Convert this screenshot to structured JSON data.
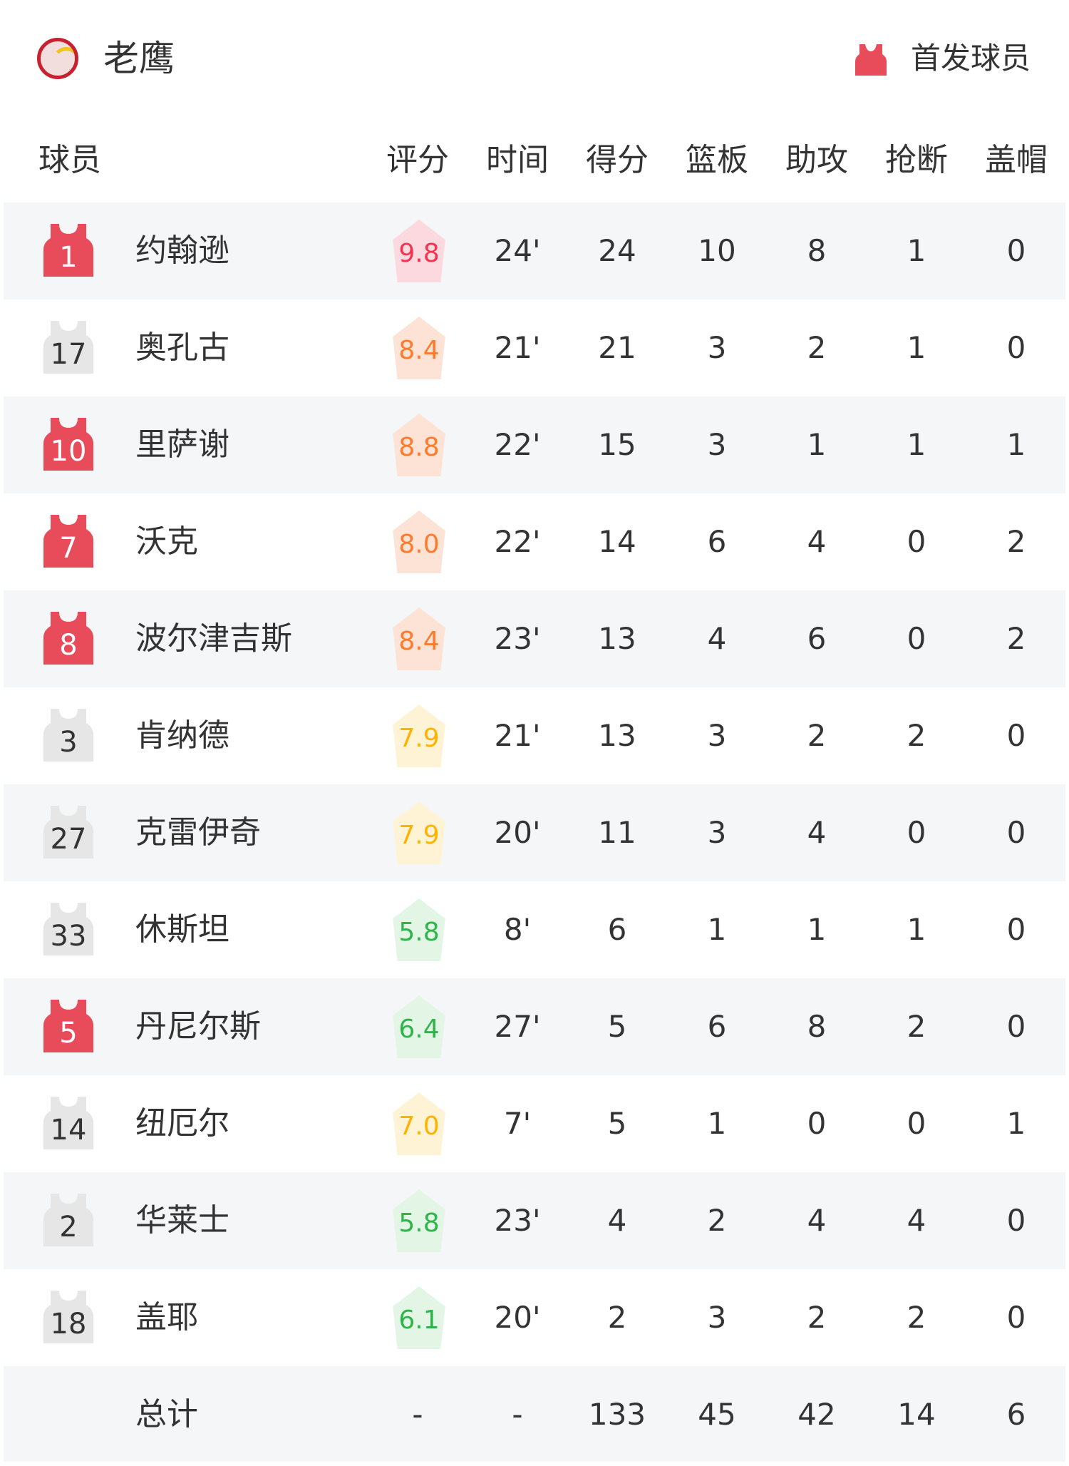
{
  "header": {
    "team_name": "老鹰",
    "team_logo_icon": "hawks-logo",
    "legend_icon": "red-jersey-icon",
    "legend_label": "首发球员"
  },
  "columns": {
    "player": "球员",
    "rating": "评分",
    "time": "时间",
    "points": "得分",
    "rebounds": "篮板",
    "assists": "助攻",
    "steals": "抢断",
    "blocks": "盖帽"
  },
  "colors": {
    "starter_jersey": "#e84c5b",
    "bench_jersey": "#e6e6e6",
    "rating_red": "#f5334f",
    "rating_orange": "#ff7a29",
    "rating_yellow": "#ffb300",
    "rating_green": "#2fb44a"
  },
  "players": [
    {
      "number": "1",
      "name": "约翰逊",
      "starter": true,
      "rating": "9.8",
      "time": "24'",
      "points": "24",
      "rebounds": "10",
      "assists": "8",
      "steals": "1",
      "blocks": "0"
    },
    {
      "number": "17",
      "name": "奥孔古",
      "starter": false,
      "rating": "8.4",
      "time": "21'",
      "points": "21",
      "rebounds": "3",
      "assists": "2",
      "steals": "1",
      "blocks": "0"
    },
    {
      "number": "10",
      "name": "里萨谢",
      "starter": true,
      "rating": "8.8",
      "time": "22'",
      "points": "15",
      "rebounds": "3",
      "assists": "1",
      "steals": "1",
      "blocks": "1"
    },
    {
      "number": "7",
      "name": "沃克",
      "starter": true,
      "rating": "8.0",
      "time": "22'",
      "points": "14",
      "rebounds": "6",
      "assists": "4",
      "steals": "0",
      "blocks": "2"
    },
    {
      "number": "8",
      "name": "波尔津吉斯",
      "starter": true,
      "rating": "8.4",
      "time": "23'",
      "points": "13",
      "rebounds": "4",
      "assists": "6",
      "steals": "0",
      "blocks": "2"
    },
    {
      "number": "3",
      "name": "肯纳德",
      "starter": false,
      "rating": "7.9",
      "time": "21'",
      "points": "13",
      "rebounds": "3",
      "assists": "2",
      "steals": "2",
      "blocks": "0"
    },
    {
      "number": "27",
      "name": "克雷伊奇",
      "starter": false,
      "rating": "7.9",
      "time": "20'",
      "points": "11",
      "rebounds": "3",
      "assists": "4",
      "steals": "0",
      "blocks": "0"
    },
    {
      "number": "33",
      "name": "休斯坦",
      "starter": false,
      "rating": "5.8",
      "time": "8'",
      "points": "6",
      "rebounds": "1",
      "assists": "1",
      "steals": "1",
      "blocks": "0"
    },
    {
      "number": "5",
      "name": "丹尼尔斯",
      "starter": true,
      "rating": "6.4",
      "time": "27'",
      "points": "5",
      "rebounds": "6",
      "assists": "8",
      "steals": "2",
      "blocks": "0"
    },
    {
      "number": "14",
      "name": "纽厄尔",
      "starter": false,
      "rating": "7.0",
      "time": "7'",
      "points": "5",
      "rebounds": "1",
      "assists": "0",
      "steals": "0",
      "blocks": "1"
    },
    {
      "number": "2",
      "name": "华莱士",
      "starter": false,
      "rating": "5.8",
      "time": "23'",
      "points": "4",
      "rebounds": "2",
      "assists": "4",
      "steals": "4",
      "blocks": "0"
    },
    {
      "number": "18",
      "name": "盖耶",
      "starter": false,
      "rating": "6.1",
      "time": "20'",
      "points": "2",
      "rebounds": "3",
      "assists": "2",
      "steals": "2",
      "blocks": "0"
    }
  ],
  "totals": {
    "label": "总计",
    "rating": "-",
    "time": "-",
    "points": "133",
    "rebounds": "45",
    "assists": "42",
    "steals": "14",
    "blocks": "6"
  }
}
